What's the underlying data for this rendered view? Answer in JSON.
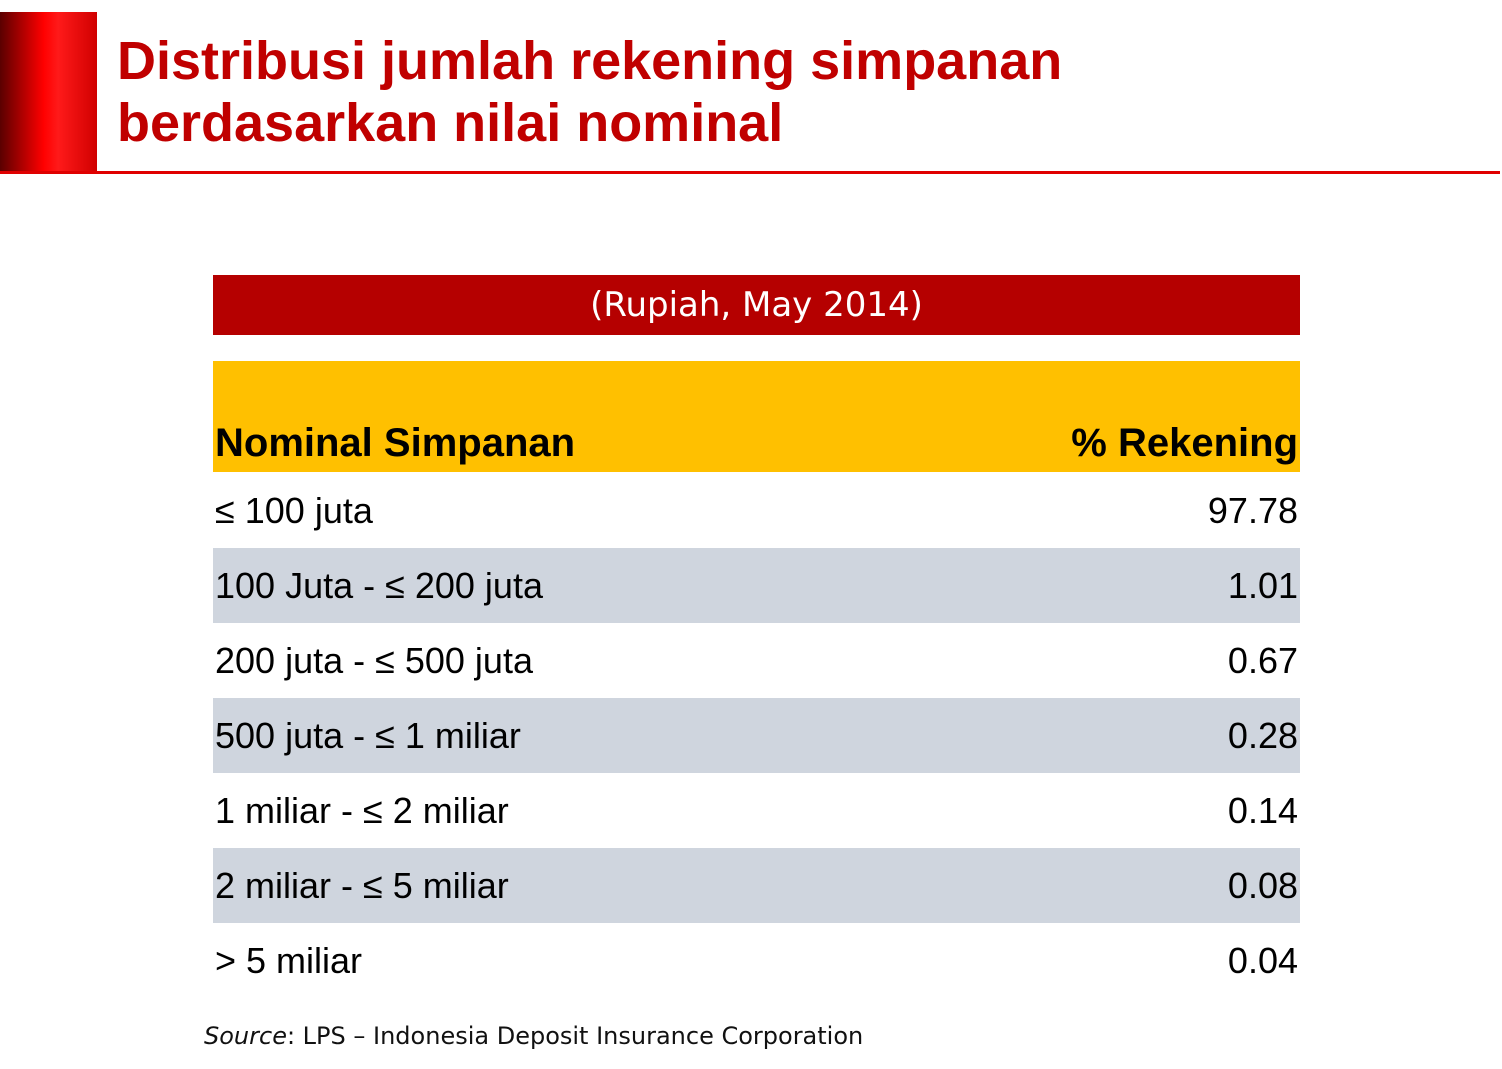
{
  "header": {
    "title": "Distribusi jumlah rekening simpanan berdasarkan nilai nominal"
  },
  "table": {
    "caption": "(Rupiah, May 2014)",
    "columns": [
      "Nominal Simpanan",
      "% Rekening"
    ],
    "rows": [
      [
        "≤ 100 juta",
        "97.78"
      ],
      [
        "100 Juta -  ≤ 200 juta",
        "1.01"
      ],
      [
        "200 juta - ≤ 500 juta",
        "0.67"
      ],
      [
        "500 juta - ≤ 1 miliar",
        "0.28"
      ],
      [
        "1 miliar - ≤ 2 miliar",
        "0.14"
      ],
      [
        "2 miliar - ≤ 5 miliar",
        "0.08"
      ],
      [
        "> 5 miliar",
        "0.04"
      ]
    ]
  },
  "source": {
    "label": "Source",
    "text": ": LPS – Indonesia Deposit Insurance Corporation"
  }
}
